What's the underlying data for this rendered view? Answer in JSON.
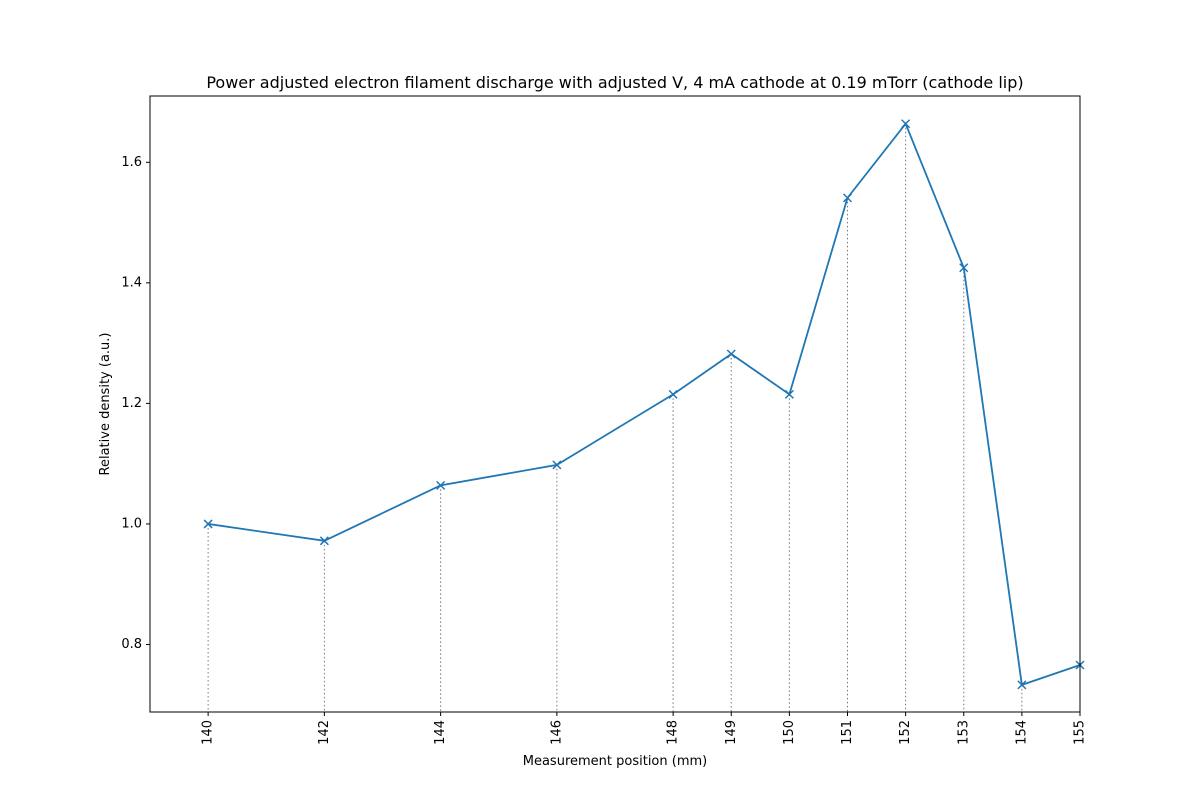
{
  "chart_data": {
    "type": "line",
    "title": "Power adjusted electron filament discharge with adjusted V, 4 mA cathode at 0.19 mTorr (cathode lip)",
    "xlabel": "Measurement position (mm)",
    "ylabel": "Relative density (a.u.)",
    "x": [
      140,
      142,
      144,
      146,
      148,
      149,
      150,
      151,
      152,
      153,
      154,
      155
    ],
    "series": [
      {
        "values": [
          1.0,
          0.972,
          1.064,
          1.098,
          1.215,
          1.282,
          1.215,
          1.541,
          1.664,
          1.425,
          0.733,
          0.766
        ],
        "color": "#1f77b4",
        "marker": "x"
      }
    ],
    "xticks": [
      "140",
      "142",
      "144",
      "146",
      "148",
      "149",
      "150",
      "151",
      "152",
      "153",
      "154",
      "155"
    ],
    "yticks": [
      "0.8",
      "1.0",
      "1.2",
      "1.4",
      "1.6"
    ],
    "ytick_values": [
      0.8,
      1.0,
      1.2,
      1.4,
      1.6
    ],
    "xlim": [
      139.0,
      155.0
    ],
    "ylim": [
      0.688,
      1.71
    ],
    "grid": false,
    "vertical_drop_lines": true,
    "drop_line_color": "#777777"
  }
}
